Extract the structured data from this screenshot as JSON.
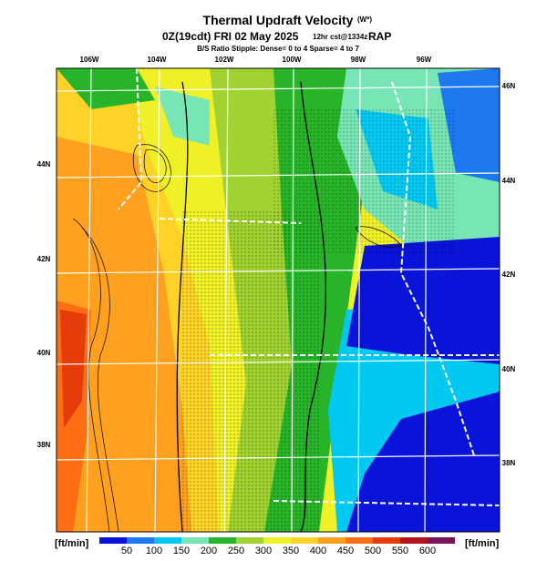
{
  "header": {
    "title": "Thermal Updraft Velocity",
    "title_symbol": "(W*)",
    "valid": "0Z(19cdt) FRI 02 May 2025",
    "forecast": "12hr cst@1334z",
    "model": "RAP",
    "stipple_note": "B/S Ratio Stipple:  Dense= 0 to 4  Sparse= 4 to 7"
  },
  "longitude_labels": [
    "106W",
    "104W",
    "102W",
    "100W",
    "98W",
    "96W"
  ],
  "latitude_labels_left": [
    "44N",
    "42N",
    "40N",
    "38N"
  ],
  "latitude_labels_right": [
    "46N",
    "44N",
    "42N",
    "40N",
    "38N"
  ],
  "colorbar": {
    "unit": "[ft/min]",
    "ticks": [
      50,
      100,
      150,
      200,
      250,
      300,
      350,
      400,
      450,
      500,
      550,
      600
    ],
    "colors": [
      "#0a14d8",
      "#1e78f0",
      "#00c8f0",
      "#78e6b4",
      "#28b428",
      "#a0d232",
      "#f0f028",
      "#ffd228",
      "#ffa01e",
      "#ff6e14",
      "#e63c0a",
      "#b4141e",
      "#78145a"
    ]
  }
}
